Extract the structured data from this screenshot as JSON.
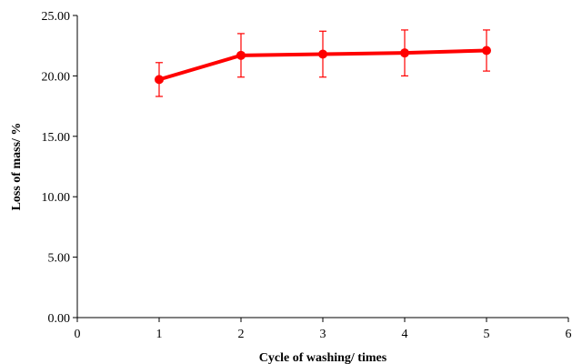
{
  "chart_data": {
    "type": "line",
    "title": "",
    "xlabel": "Cycle of washing/ times",
    "ylabel": "Loss of mass/ %",
    "xlim": [
      0,
      6
    ],
    "ylim": [
      0,
      25
    ],
    "x_ticks": [
      "0",
      "1",
      "2",
      "3",
      "4",
      "5",
      "6"
    ],
    "y_ticks": [
      "0.00",
      "5.00",
      "10.00",
      "15.00",
      "20.00",
      "25.00"
    ],
    "grid": false,
    "legend": "none",
    "series": [
      {
        "color": "#ff0000",
        "x": [
          1,
          2,
          3,
          4,
          5
        ],
        "y": [
          19.7,
          21.7,
          21.8,
          21.9,
          22.1
        ],
        "error": [
          1.4,
          1.8,
          1.9,
          1.9,
          1.7
        ]
      }
    ]
  }
}
